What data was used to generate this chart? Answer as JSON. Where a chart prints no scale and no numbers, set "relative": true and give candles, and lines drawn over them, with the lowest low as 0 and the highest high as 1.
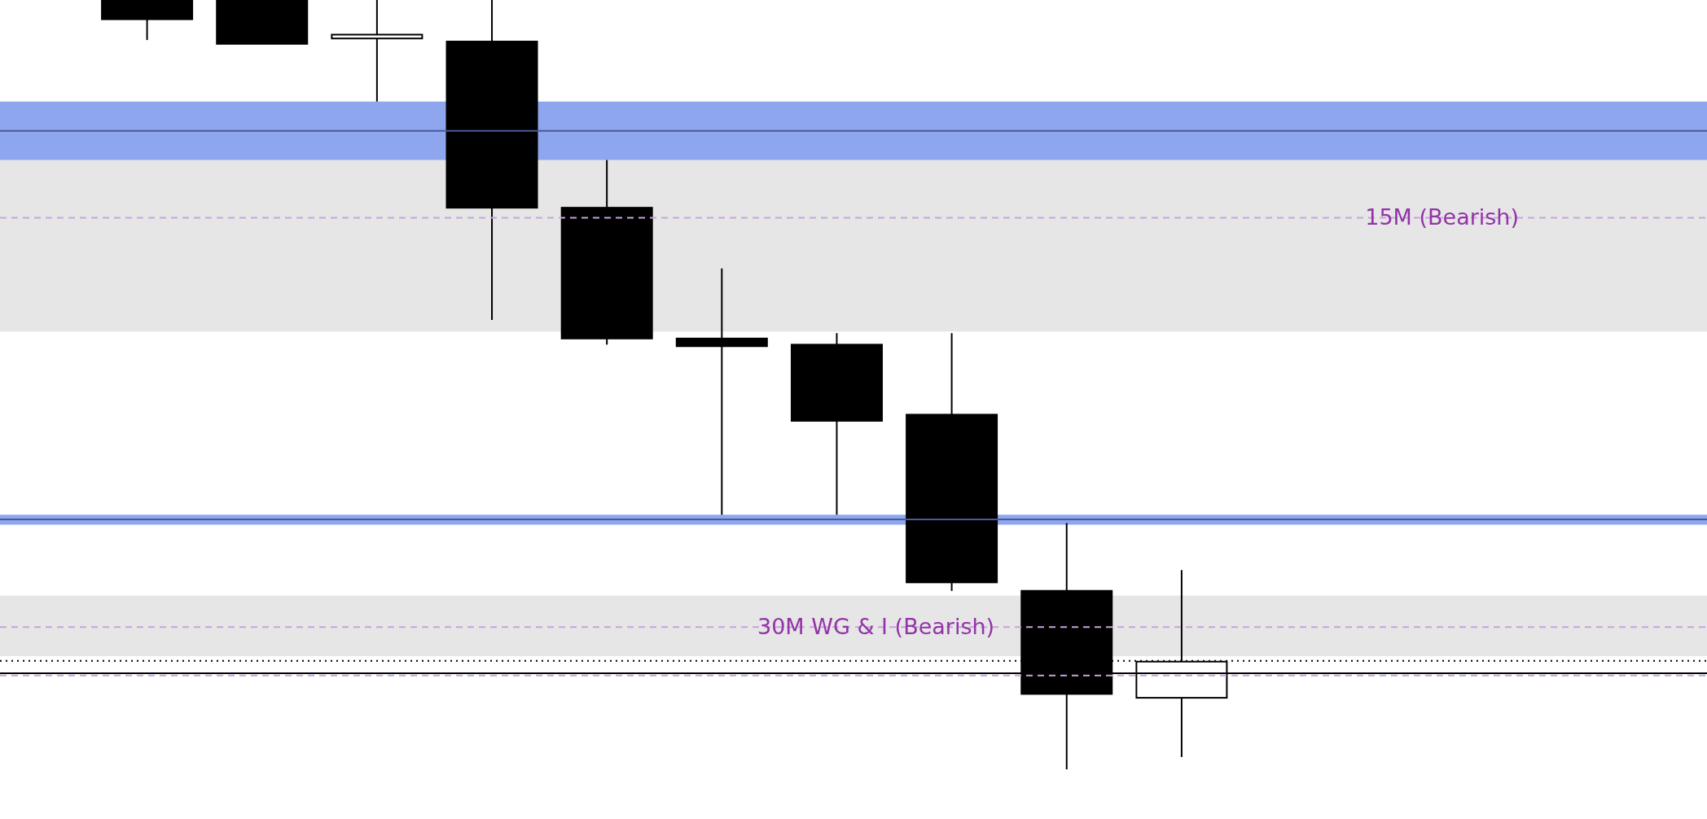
{
  "chart_data": {
    "type": "candlestick",
    "relative": true,
    "categories": [
      null,
      null,
      null,
      null,
      null,
      null,
      null,
      null,
      null,
      null
    ],
    "ohlc": [
      [
        1,
        1,
        0.948,
        0.975
      ],
      [
        1,
        1,
        0.943,
        0.943
      ],
      [
        0.95,
        1,
        0.868,
        0.955
      ],
      [
        0.946,
        1,
        0.584,
        0.73
      ],
      [
        0.73,
        0.792,
        0.552,
        0.56
      ],
      [
        0.56,
        0.651,
        0.331,
        0.55
      ],
      [
        0.552,
        0.567,
        0.331,
        0.453
      ],
      [
        0.461,
        0.567,
        0.232,
        0.243
      ],
      [
        0.232,
        0.32,
        0,
        0.098
      ],
      [
        0.093,
        0.259,
        0.016,
        0.14
      ]
    ],
    "bands": [
      {
        "axis": "y",
        "from": 0.569,
        "to": 0.867,
        "color": "#e6e6e6"
      },
      {
        "axis": "y",
        "from": 0.147,
        "to": 0.226,
        "color": "#e6e6e6"
      },
      {
        "axis": "y",
        "from": 0.792,
        "to": 0.868,
        "color": "#8ea6ee"
      },
      {
        "axis": "y",
        "from": 0.318,
        "to": 0.331,
        "color": "#8ea6ee"
      }
    ],
    "ref_lines": [
      {
        "axis": "y",
        "value": 0.717,
        "label": "15M (Bearish)",
        "color": "#c9a3dc",
        "line_style": "dashed"
      },
      {
        "axis": "y",
        "value": 0.185,
        "label": "30M WG & I (Bearish)",
        "color": "#c9a3dc",
        "line_style": "dashed"
      },
      {
        "axis": "y",
        "value": 0.83,
        "color": "#4a5a9a",
        "line_style": "solid"
      },
      {
        "axis": "y",
        "value": 0.325,
        "color": "#4a5a9a",
        "line_style": "solid"
      },
      {
        "axis": "y",
        "value": 0.141,
        "color": "#000000",
        "line_style": "dotted"
      },
      {
        "axis": "y",
        "value": 0.125,
        "color": "#000000",
        "line_style": "solid"
      },
      {
        "axis": "y",
        "value": 0.122,
        "color": "#c9a3dc",
        "line_style": "dashed"
      }
    ]
  }
}
